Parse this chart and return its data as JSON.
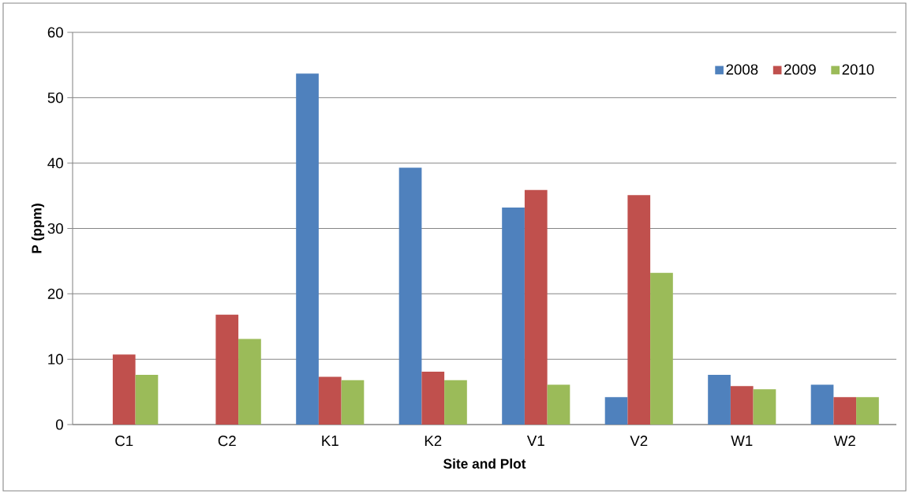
{
  "chart_data": {
    "type": "bar",
    "xlabel": "Site and Plot",
    "ylabel": "P (ppm)",
    "categories": [
      "C1",
      "C2",
      "K1",
      "K2",
      "V1",
      "V2",
      "W1",
      "W2"
    ],
    "series": [
      {
        "name": "2008",
        "color": "#4f81bd",
        "values": [
          null,
          null,
          53.7,
          39.3,
          33.2,
          4.2,
          7.6,
          6.1
        ]
      },
      {
        "name": "2009",
        "color": "#c0504d",
        "values": [
          10.7,
          16.8,
          7.3,
          8.1,
          35.9,
          35.1,
          5.9,
          4.2
        ]
      },
      {
        "name": "2010",
        "color": "#9bbb59",
        "values": [
          7.6,
          13.1,
          6.8,
          6.8,
          6.1,
          23.2,
          5.4,
          4.2
        ]
      }
    ],
    "ylim": [
      0,
      60
    ],
    "yticks": [
      0,
      10,
      20,
      30,
      40,
      50,
      60
    ],
    "grid": "y",
    "legend": "top right"
  }
}
